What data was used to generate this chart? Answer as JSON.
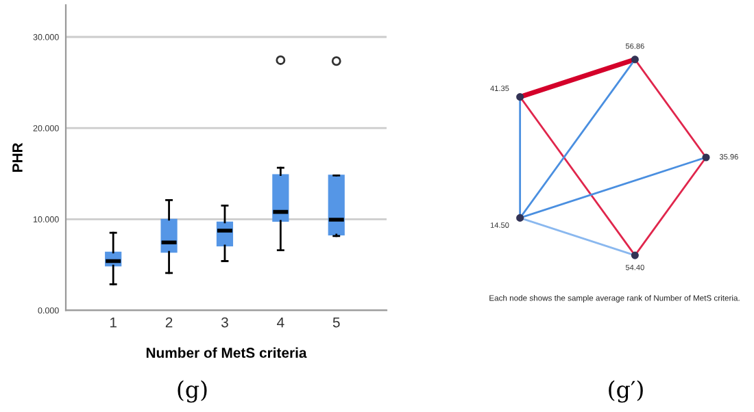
{
  "chart_data": [
    {
      "type": "box",
      "xlabel": "Number of MetS criteria",
      "ylabel": "PHR",
      "categories": [
        "1",
        "2",
        "3",
        "4",
        "5"
      ],
      "color": "#5596e6",
      "boxes": [
        {
          "low": 2.85,
          "q1": 4.9,
          "median": 5.4,
          "q3": 6.35,
          "high": 8.5
        },
        {
          "low": 4.1,
          "q1": 6.4,
          "median": 7.45,
          "q3": 9.95,
          "high": 12.1
        },
        {
          "low": 5.4,
          "q1": 7.1,
          "median": 8.75,
          "q3": 9.65,
          "high": 11.5
        },
        {
          "low": 6.6,
          "q1": 9.8,
          "median": 10.8,
          "q3": 14.85,
          "high": 15.65,
          "outliers": [
            27.45
          ]
        },
        {
          "low": 8.15,
          "q1": 8.3,
          "median": 9.95,
          "q3": 14.8,
          "high": 14.8,
          "outliers": [
            27.35
          ]
        }
      ],
      "ylim": [
        0,
        33.5
      ],
      "yticks": [
        {
          "value": 0,
          "label": "0.000"
        },
        {
          "value": 10,
          "label": "10.000"
        },
        {
          "value": 20,
          "label": "20.000"
        },
        {
          "value": 30,
          "label": "30.000"
        }
      ],
      "grid": "y",
      "annotations": [
        "(g)"
      ]
    },
    {
      "type": "other",
      "categories": [
        "41.35",
        "56.86",
        "35.96",
        "54.40",
        "14.50"
      ],
      "annotations": [
        "Each node shows the sample average rank of Number of MetS criteria.",
        "(g′)"
      ]
    }
  ]
}
